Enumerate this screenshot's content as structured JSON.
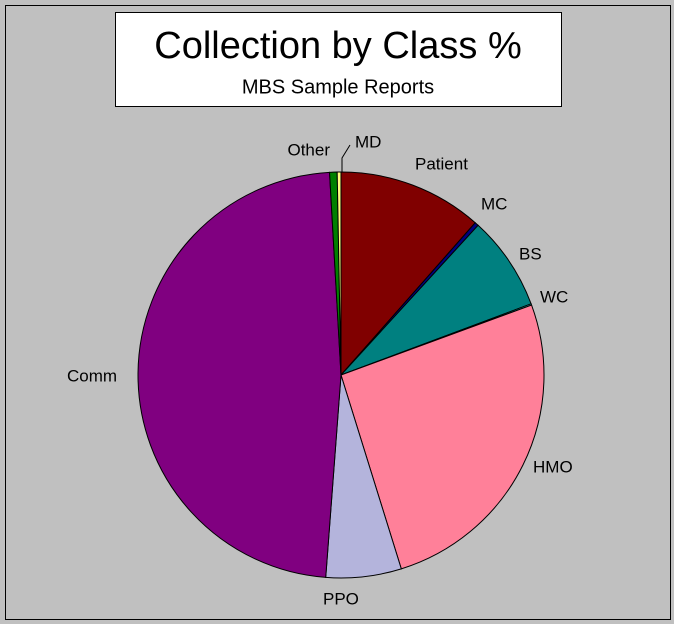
{
  "chart_data": {
    "type": "pie",
    "title": "Collection by Class %",
    "subtitle": "MBS Sample Reports",
    "categories": [
      "Patient",
      "MC",
      "BS",
      "WC",
      "HMO",
      "PPO",
      "Comm",
      "Other",
      "MD"
    ],
    "values": [
      11.5,
      0.3,
      7.5,
      0.1,
      25.8,
      6,
      47.9,
      0.6,
      0.3
    ],
    "colors": [
      "#800000",
      "#000080",
      "#008080",
      "#00ffff",
      "#ff8099",
      "#b4b4dc",
      "#800080",
      "#008000",
      "#ffff80"
    ]
  }
}
